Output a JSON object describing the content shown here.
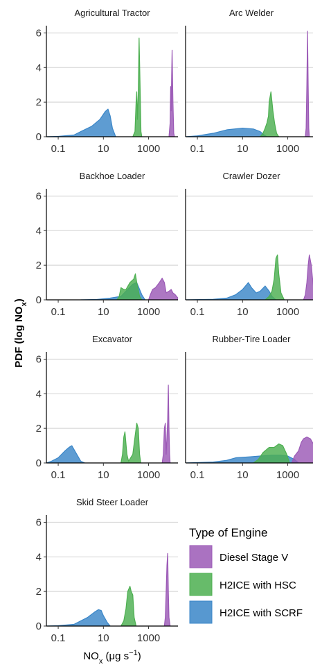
{
  "chart_data": {
    "type": "area",
    "ylabel": {
      "main": "PDF (log NO",
      "sub": "x",
      "tail": ")"
    },
    "xlabel": {
      "main": "NO",
      "sub": "x",
      "tail": " (μg s",
      "sup": "−1",
      "end": ")"
    },
    "x_scale": "log",
    "xlim": [
      0.03,
      20000
    ],
    "ylim": [
      0,
      6.3
    ],
    "x_ticks": [
      {
        "value": 0.1,
        "label": "0.1"
      },
      {
        "value": 10,
        "label": "10"
      },
      {
        "value": 1000,
        "label": "1000"
      }
    ],
    "y_ticks": [
      0,
      2,
      4,
      6
    ],
    "grid": "horizontal",
    "legend": {
      "title": "Type of Engine",
      "placement": "bottom-right",
      "entries": [
        {
          "label": "Diesel Stage V",
          "color": "#9b59b6"
        },
        {
          "label": "H2ICE with HSC",
          "color": "#4caf50"
        },
        {
          "label": "H2ICE with SCRF",
          "color": "#3a86c8"
        }
      ]
    },
    "series_colors": {
      "diesel": "#9b59b6",
      "hsc": "#4caf50",
      "scrf": "#3a86c8"
    },
    "panels": [
      {
        "title": "Agricultural Tractor",
        "scrf": [
          [
            0.03,
            0
          ],
          [
            0.1,
            0.02
          ],
          [
            0.5,
            0.1
          ],
          [
            1,
            0.3
          ],
          [
            3,
            0.6
          ],
          [
            7,
            1.0
          ],
          [
            12,
            1.45
          ],
          [
            16,
            1.6
          ],
          [
            20,
            1.2
          ],
          [
            25,
            0.5
          ],
          [
            35,
            0
          ]
        ],
        "hsc": [
          [
            200,
            0
          ],
          [
            250,
            0.3
          ],
          [
            280,
            2.0
          ],
          [
            300,
            2.6
          ],
          [
            320,
            1.0
          ],
          [
            350,
            2.5
          ],
          [
            380,
            5.7
          ],
          [
            420,
            3.0
          ],
          [
            460,
            0.3
          ],
          [
            500,
            0
          ]
        ],
        "diesel": [
          [
            8000,
            0
          ],
          [
            9000,
            0.8
          ],
          [
            9500,
            2.9
          ],
          [
            10000,
            1.5
          ],
          [
            10500,
            3.5
          ],
          [
            11000,
            5.0
          ],
          [
            12000,
            2.0
          ],
          [
            13000,
            0.2
          ],
          [
            14000,
            0
          ]
        ]
      },
      {
        "title": "Arc Welder",
        "scrf": [
          [
            0.03,
            0
          ],
          [
            0.1,
            0.05
          ],
          [
            0.5,
            0.2
          ],
          [
            2,
            0.4
          ],
          [
            10,
            0.5
          ],
          [
            30,
            0.45
          ],
          [
            60,
            0.3
          ],
          [
            90,
            0.1
          ],
          [
            120,
            0
          ]
        ],
        "hsc": [
          [
            60,
            0
          ],
          [
            80,
            0.2
          ],
          [
            100,
            0.5
          ],
          [
            120,
            0.8
          ],
          [
            140,
            1.2
          ],
          [
            150,
            2.0
          ],
          [
            180,
            2.6
          ],
          [
            220,
            1.5
          ],
          [
            260,
            0.8
          ],
          [
            320,
            0.2
          ],
          [
            400,
            0
          ]
        ],
        "diesel": [
          [
            6000,
            0
          ],
          [
            6500,
            0.5
          ],
          [
            7000,
            3.0
          ],
          [
            7500,
            6.1
          ],
          [
            8000,
            3.0
          ],
          [
            8500,
            0.5
          ],
          [
            9000,
            0
          ]
        ]
      },
      {
        "title": "Backhoe Loader",
        "scrf": [
          [
            1,
            0
          ],
          [
            5,
            0.02
          ],
          [
            20,
            0.1
          ],
          [
            60,
            0.2
          ],
          [
            100,
            0.5
          ],
          [
            200,
            0.9
          ],
          [
            300,
            1.0
          ],
          [
            500,
            0.3
          ],
          [
            700,
            0
          ]
        ],
        "hsc": [
          [
            40,
            0
          ],
          [
            50,
            0.2
          ],
          [
            60,
            0.7
          ],
          [
            80,
            0.6
          ],
          [
            100,
            0.6
          ],
          [
            150,
            1.0
          ],
          [
            220,
            1.2
          ],
          [
            260,
            1.5
          ],
          [
            300,
            1.0
          ],
          [
            400,
            0.2
          ],
          [
            500,
            0
          ]
        ],
        "diesel": [
          [
            1000,
            0
          ],
          [
            1200,
            0.3
          ],
          [
            1500,
            0.6
          ],
          [
            2000,
            0.7
          ],
          [
            3000,
            1.0
          ],
          [
            4000,
            1.25
          ],
          [
            5000,
            1.0
          ],
          [
            6000,
            0.4
          ],
          [
            8000,
            0.5
          ],
          [
            10000,
            0.6
          ],
          [
            12000,
            0.4
          ],
          [
            15000,
            0.3
          ],
          [
            20000,
            0.1
          ]
        ]
      },
      {
        "title": "Crawler Dozer",
        "scrf": [
          [
            0.03,
            0
          ],
          [
            0.5,
            0.03
          ],
          [
            2,
            0.1
          ],
          [
            5,
            0.3
          ],
          [
            10,
            0.6
          ],
          [
            18,
            1.0
          ],
          [
            25,
            0.7
          ],
          [
            40,
            0.4
          ],
          [
            60,
            0.5
          ],
          [
            100,
            0.8
          ],
          [
            150,
            0.5
          ],
          [
            200,
            0.2
          ],
          [
            300,
            0
          ]
        ],
        "hsc": [
          [
            100,
            0
          ],
          [
            150,
            0.2
          ],
          [
            200,
            0.5
          ],
          [
            250,
            1.2
          ],
          [
            300,
            2.4
          ],
          [
            350,
            2.6
          ],
          [
            400,
            1.5
          ],
          [
            500,
            0.4
          ],
          [
            700,
            0
          ]
        ],
        "diesel": [
          [
            5000,
            0
          ],
          [
            6000,
            0.3
          ],
          [
            7000,
            1.0
          ],
          [
            8000,
            2.0
          ],
          [
            9000,
            2.6
          ],
          [
            11000,
            2.0
          ],
          [
            13000,
            1.0
          ],
          [
            15000,
            0.4
          ],
          [
            20000,
            0
          ]
        ]
      },
      {
        "title": "Excavator",
        "scrf": [
          [
            0.03,
            0
          ],
          [
            0.05,
            0.1
          ],
          [
            0.1,
            0.3
          ],
          [
            0.2,
            0.7
          ],
          [
            0.3,
            0.9
          ],
          [
            0.4,
            1.0
          ],
          [
            0.6,
            0.6
          ],
          [
            1,
            0.1
          ],
          [
            1.5,
            0
          ]
        ],
        "hsc": [
          [
            60,
            0
          ],
          [
            70,
            0.5
          ],
          [
            80,
            1.5
          ],
          [
            90,
            1.8
          ],
          [
            110,
            0.5
          ],
          [
            130,
            0.1
          ],
          [
            200,
            0.5
          ],
          [
            250,
            1.5
          ],
          [
            300,
            2.3
          ],
          [
            350,
            2.0
          ],
          [
            400,
            0.5
          ],
          [
            450,
            0
          ]
        ],
        "diesel": [
          [
            4000,
            0
          ],
          [
            4500,
            0.5
          ],
          [
            5000,
            2.0
          ],
          [
            5500,
            2.3
          ],
          [
            6000,
            0.5
          ],
          [
            6500,
            1.5
          ],
          [
            7000,
            2.5
          ],
          [
            7500,
            4.5
          ],
          [
            8000,
            2.0
          ],
          [
            8500,
            0.5
          ],
          [
            9000,
            0
          ]
        ]
      },
      {
        "title": "Rubber-Tire Loader",
        "scrf": [
          [
            0.03,
            0
          ],
          [
            0.5,
            0.05
          ],
          [
            2,
            0.15
          ],
          [
            5,
            0.3
          ],
          [
            20,
            0.35
          ],
          [
            60,
            0.4
          ],
          [
            200,
            0.45
          ],
          [
            500,
            0.45
          ],
          [
            1000,
            0.4
          ],
          [
            2000,
            0.2
          ],
          [
            3000,
            0
          ]
        ],
        "hsc": [
          [
            30,
            0
          ],
          [
            50,
            0.2
          ],
          [
            80,
            0.6
          ],
          [
            150,
            0.9
          ],
          [
            250,
            0.9
          ],
          [
            400,
            1.1
          ],
          [
            600,
            1.0
          ],
          [
            900,
            0.5
          ],
          [
            1200,
            0
          ]
        ],
        "diesel": [
          [
            1500,
            0
          ],
          [
            2000,
            0.4
          ],
          [
            3000,
            0.7
          ],
          [
            4000,
            1.2
          ],
          [
            5000,
            1.4
          ],
          [
            7000,
            1.5
          ],
          [
            10000,
            1.4
          ],
          [
            15000,
            1.0
          ],
          [
            20000,
            0.4
          ]
        ]
      },
      {
        "title": "Skid Steer Loader",
        "scrf": [
          [
            0.03,
            0
          ],
          [
            0.1,
            0.02
          ],
          [
            0.5,
            0.1
          ],
          [
            1,
            0.3
          ],
          [
            2,
            0.5
          ],
          [
            4,
            0.8
          ],
          [
            6,
            0.95
          ],
          [
            8,
            0.9
          ],
          [
            10,
            0.6
          ],
          [
            15,
            0.2
          ],
          [
            20,
            0
          ]
        ],
        "hsc": [
          [
            60,
            0
          ],
          [
            80,
            0.3
          ],
          [
            100,
            1.0
          ],
          [
            120,
            2.0
          ],
          [
            150,
            2.3
          ],
          [
            170,
            2.0
          ],
          [
            200,
            1.8
          ],
          [
            230,
            0.5
          ],
          [
            280,
            0
          ]
        ],
        "diesel": [
          [
            5000,
            0
          ],
          [
            5500,
            0.5
          ],
          [
            6000,
            2.0
          ],
          [
            6500,
            3.5
          ],
          [
            7000,
            4.2
          ],
          [
            7500,
            2.0
          ],
          [
            8000,
            0.5
          ],
          [
            9000,
            0
          ]
        ]
      }
    ]
  }
}
